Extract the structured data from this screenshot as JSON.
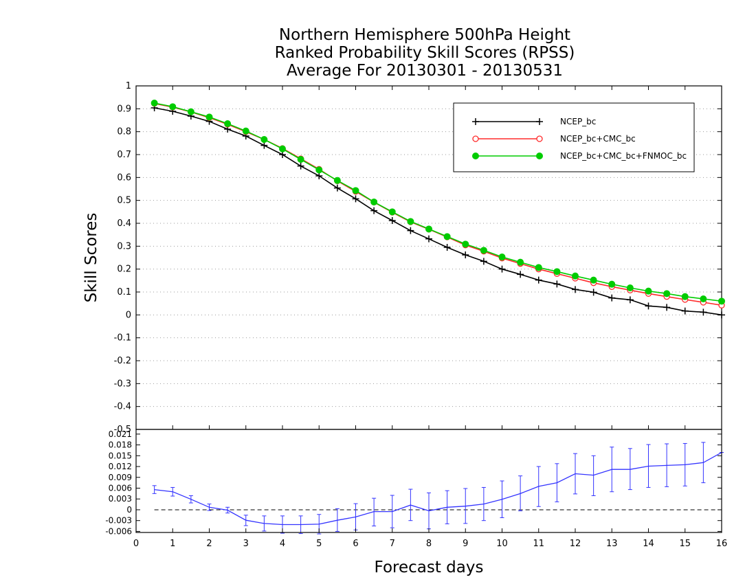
{
  "chart_data": {
    "title_lines": [
      "Northern Hemisphere 500hPa Height",
      "Ranked Probability Skill Scores (RPSS)",
      "Average For 20130301 - 20130531"
    ],
    "xlabel": "Forecast days",
    "ylabel": "Skill Scores",
    "xlim": [
      0,
      16
    ],
    "x_ticks": [
      "0",
      "1",
      "2",
      "3",
      "4",
      "5",
      "6",
      "7",
      "8",
      "9",
      "10",
      "11",
      "12",
      "13",
      "14",
      "15",
      "16"
    ],
    "upper": {
      "type": "line",
      "ylim": [
        -0.5,
        1
      ],
      "y_ticks": [
        "-0.5",
        "-0.4",
        "-0.3",
        "-0.2",
        "-0.1",
        "0",
        "0.1",
        "0.2",
        "0.3",
        "0.4",
        "0.5",
        "0.6",
        "0.7",
        "0.8",
        "0.9",
        "1"
      ],
      "grid": true,
      "legend_position": "top-right",
      "x": [
        0.5,
        1,
        1.5,
        2,
        2.5,
        3,
        3.5,
        4,
        4.5,
        5,
        5.5,
        6,
        6.5,
        7,
        7.5,
        8,
        8.5,
        9,
        9.5,
        10,
        10.5,
        11,
        11.5,
        12,
        12.5,
        13,
        13.5,
        14,
        14.5,
        15,
        15.5,
        16
      ],
      "series": [
        {
          "name": "NCEP_bc",
          "color": "#000000",
          "marker": "plus",
          "values": [
            0.904,
            0.889,
            0.868,
            0.845,
            0.811,
            0.781,
            0.74,
            0.7,
            0.65,
            0.607,
            0.554,
            0.507,
            0.455,
            0.412,
            0.368,
            0.332,
            0.295,
            0.262,
            0.234,
            0.2,
            0.177,
            0.152,
            0.135,
            0.111,
            0.099,
            0.074,
            0.066,
            0.039,
            0.033,
            0.017,
            0.012,
            0.0
          ]
        },
        {
          "name": "NCEP_bc+CMC_bc",
          "color": "#ff2a2a",
          "marker": "open-circle",
          "values": [
            0.923,
            0.907,
            0.886,
            0.861,
            0.832,
            0.8,
            0.766,
            0.727,
            0.682,
            0.636,
            0.585,
            0.539,
            0.492,
            0.448,
            0.406,
            0.374,
            0.34,
            0.305,
            0.278,
            0.248,
            0.224,
            0.2,
            0.18,
            0.16,
            0.14,
            0.123,
            0.108,
            0.093,
            0.08,
            0.067,
            0.055,
            0.042
          ]
        },
        {
          "name": "NCEP_bc+CMC_bc+FNMOC_bc",
          "color": "#00cc00",
          "marker": "filled-circle",
          "values": [
            0.925,
            0.909,
            0.887,
            0.864,
            0.835,
            0.803,
            0.766,
            0.725,
            0.679,
            0.633,
            0.587,
            0.543,
            0.493,
            0.45,
            0.408,
            0.375,
            0.342,
            0.309,
            0.282,
            0.253,
            0.23,
            0.207,
            0.189,
            0.17,
            0.152,
            0.134,
            0.118,
            0.104,
            0.093,
            0.08,
            0.07,
            0.06
          ]
        }
      ]
    },
    "lower": {
      "type": "line",
      "ylim": [
        -0.0063,
        0.0223
      ],
      "y_ticks": [
        "-0.006",
        "-0.003",
        "0",
        "0.003",
        "0.006",
        "0.009",
        "0.012",
        "0.015",
        "0.018",
        "0.021"
      ],
      "reference_line": 0,
      "color": "#3333ff",
      "x": [
        0.5,
        1,
        1.5,
        2,
        2.5,
        3,
        3.5,
        4,
        4.5,
        5,
        5.5,
        6,
        6.5,
        7,
        7.5,
        8,
        8.5,
        9,
        9.5,
        10,
        10.5,
        11,
        11.5,
        12,
        12.5,
        13,
        13.5,
        14,
        14.5,
        15,
        15.5,
        16
      ],
      "values": [
        0.0056,
        0.005,
        0.0029,
        0.0007,
        -0.0001,
        -0.0029,
        -0.0038,
        -0.0041,
        -0.0041,
        -0.004,
        -0.0029,
        -0.002,
        -0.0005,
        -0.0005,
        0.0013,
        -0.0003,
        0.0007,
        0.001,
        0.0016,
        0.0029,
        0.0045,
        0.0065,
        0.0075,
        0.01,
        0.0096,
        0.0112,
        0.0112,
        0.0121,
        0.0123,
        0.0125,
        0.0131,
        0.0159
      ],
      "lower_bound": [
        0.0045,
        0.0038,
        0.0019,
        -0.0002,
        -0.0009,
        -0.0044,
        -0.0059,
        -0.0065,
        -0.0066,
        -0.0067,
        -0.006,
        -0.0056,
        -0.0045,
        -0.005,
        -0.003,
        -0.0053,
        -0.0039,
        -0.0038,
        -0.003,
        -0.0022,
        -0.0003,
        0.0009,
        0.0022,
        0.0044,
        0.0039,
        0.005,
        0.0056,
        0.0062,
        0.0064,
        0.0066,
        0.0075,
        0.0159
      ],
      "upper_bound": [
        0.0067,
        0.0062,
        0.0039,
        0.0016,
        0.0007,
        -0.0015,
        -0.0017,
        -0.0017,
        -0.0017,
        -0.0013,
        0.0003,
        0.0017,
        0.0032,
        0.004,
        0.0057,
        0.0047,
        0.0053,
        0.0059,
        0.0062,
        0.008,
        0.0094,
        0.012,
        0.0128,
        0.0156,
        0.015,
        0.0174,
        0.017,
        0.0181,
        0.0183,
        0.0184,
        0.0187,
        0.0159
      ]
    }
  }
}
